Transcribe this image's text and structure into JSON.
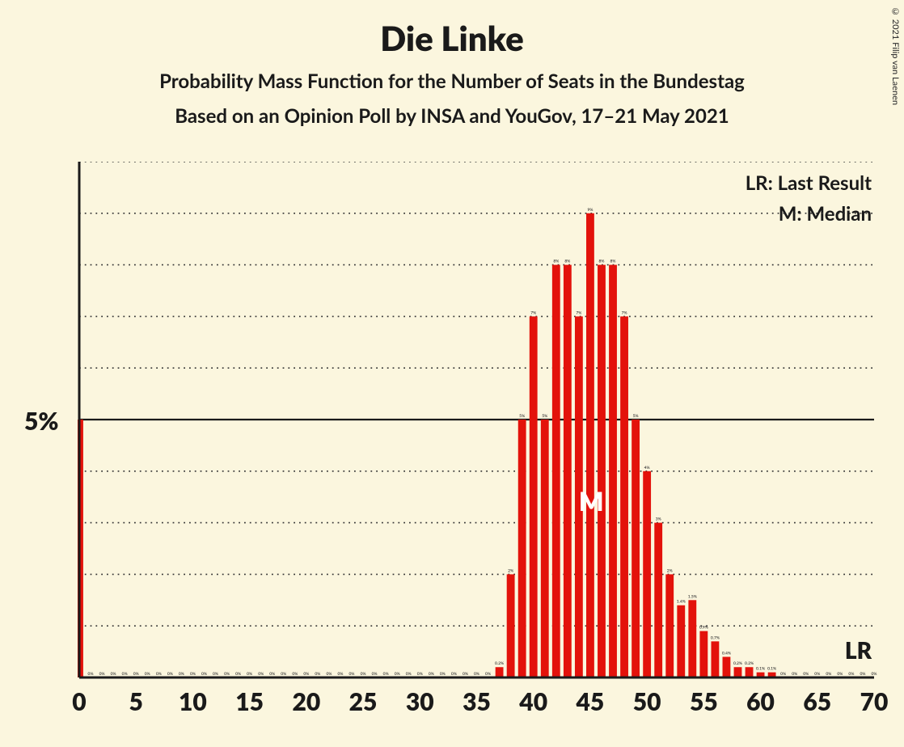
{
  "copyright": "© 2021 Filip van Laenen",
  "header": {
    "title": "Die Linke",
    "subtitle1": "Probability Mass Function for the Number of Seats in the Bundestag",
    "subtitle2": "Based on an Opinion Poll by INSA and YouGov, 17–21 May 2021"
  },
  "legend": {
    "lr": "LR: Last Result",
    "m": "M: Median"
  },
  "chart": {
    "type": "bar",
    "background_color": "#fbf6de",
    "bar_color": "#e3120b",
    "axis_color": "#1a1a1a",
    "grid_color": "#333333",
    "text_color": "#1a1a1a",
    "ylabel_5": "5%",
    "ylim": [
      0,
      10
    ],
    "ytick_major": 5,
    "ytick_minor": 1,
    "xlim": [
      0,
      70
    ],
    "xtick_step": 5,
    "xticks": [
      0,
      5,
      10,
      15,
      20,
      25,
      30,
      35,
      40,
      45,
      50,
      55,
      60,
      65,
      70
    ],
    "bar_width_ratio": 0.7,
    "median_x": 45,
    "median_label": "M",
    "lr_label": "LR",
    "lr_x": 69,
    "bar_label_fontsize": 5,
    "data": [
      {
        "x": 0,
        "pct": 5.0,
        "label": ""
      },
      {
        "x": 1,
        "pct": 0,
        "label": "0%"
      },
      {
        "x": 2,
        "pct": 0,
        "label": "0%"
      },
      {
        "x": 3,
        "pct": 0,
        "label": "0%"
      },
      {
        "x": 4,
        "pct": 0,
        "label": "0%"
      },
      {
        "x": 5,
        "pct": 0,
        "label": "0%"
      },
      {
        "x": 6,
        "pct": 0,
        "label": "0%"
      },
      {
        "x": 7,
        "pct": 0,
        "label": "0%"
      },
      {
        "x": 8,
        "pct": 0,
        "label": "0%"
      },
      {
        "x": 9,
        "pct": 0,
        "label": "0%"
      },
      {
        "x": 10,
        "pct": 0,
        "label": "0%"
      },
      {
        "x": 11,
        "pct": 0,
        "label": "0%"
      },
      {
        "x": 12,
        "pct": 0,
        "label": "0%"
      },
      {
        "x": 13,
        "pct": 0,
        "label": "0%"
      },
      {
        "x": 14,
        "pct": 0,
        "label": "0%"
      },
      {
        "x": 15,
        "pct": 0,
        "label": "0%"
      },
      {
        "x": 16,
        "pct": 0,
        "label": "0%"
      },
      {
        "x": 17,
        "pct": 0,
        "label": "0%"
      },
      {
        "x": 18,
        "pct": 0,
        "label": "0%"
      },
      {
        "x": 19,
        "pct": 0,
        "label": "0%"
      },
      {
        "x": 20,
        "pct": 0,
        "label": "0%"
      },
      {
        "x": 21,
        "pct": 0,
        "label": "0%"
      },
      {
        "x": 22,
        "pct": 0,
        "label": "0%"
      },
      {
        "x": 23,
        "pct": 0,
        "label": "0%"
      },
      {
        "x": 24,
        "pct": 0,
        "label": "0%"
      },
      {
        "x": 25,
        "pct": 0,
        "label": "0%"
      },
      {
        "x": 26,
        "pct": 0,
        "label": "0%"
      },
      {
        "x": 27,
        "pct": 0,
        "label": "0%"
      },
      {
        "x": 28,
        "pct": 0,
        "label": "0%"
      },
      {
        "x": 29,
        "pct": 0,
        "label": "0%"
      },
      {
        "x": 30,
        "pct": 0,
        "label": "0%"
      },
      {
        "x": 31,
        "pct": 0,
        "label": "0%"
      },
      {
        "x": 32,
        "pct": 0,
        "label": "0%"
      },
      {
        "x": 33,
        "pct": 0,
        "label": "0%"
      },
      {
        "x": 34,
        "pct": 0,
        "label": "0%"
      },
      {
        "x": 35,
        "pct": 0,
        "label": "0%"
      },
      {
        "x": 36,
        "pct": 0,
        "label": "0%"
      },
      {
        "x": 37,
        "pct": 0.2,
        "label": "0.2%"
      },
      {
        "x": 38,
        "pct": 2,
        "label": "2%"
      },
      {
        "x": 39,
        "pct": 5,
        "label": "5%"
      },
      {
        "x": 40,
        "pct": 7,
        "label": "7%"
      },
      {
        "x": 41,
        "pct": 5,
        "label": "5%"
      },
      {
        "x": 42,
        "pct": 8,
        "label": "8%"
      },
      {
        "x": 43,
        "pct": 8,
        "label": "8%"
      },
      {
        "x": 44,
        "pct": 7,
        "label": "7%"
      },
      {
        "x": 45,
        "pct": 9,
        "label": "9%"
      },
      {
        "x": 46,
        "pct": 8,
        "label": "8%"
      },
      {
        "x": 47,
        "pct": 8,
        "label": "8%"
      },
      {
        "x": 48,
        "pct": 7,
        "label": "7%"
      },
      {
        "x": 49,
        "pct": 5,
        "label": "5%"
      },
      {
        "x": 50,
        "pct": 4,
        "label": "4%"
      },
      {
        "x": 51,
        "pct": 3,
        "label": "3%"
      },
      {
        "x": 52,
        "pct": 2,
        "label": "2%"
      },
      {
        "x": 53,
        "pct": 1.4,
        "label": "1.4%"
      },
      {
        "x": 54,
        "pct": 1.5,
        "label": "1.5%"
      },
      {
        "x": 55,
        "pct": 0.9,
        "label": "0.9%"
      },
      {
        "x": 56,
        "pct": 0.7,
        "label": "0.7%"
      },
      {
        "x": 57,
        "pct": 0.4,
        "label": "0.4%"
      },
      {
        "x": 58,
        "pct": 0.2,
        "label": "0.2%"
      },
      {
        "x": 59,
        "pct": 0.2,
        "label": "0.2%"
      },
      {
        "x": 60,
        "pct": 0.1,
        "label": "0.1%"
      },
      {
        "x": 61,
        "pct": 0.1,
        "label": "0.1%"
      },
      {
        "x": 62,
        "pct": 0,
        "label": "0%"
      },
      {
        "x": 63,
        "pct": 0,
        "label": "0%"
      },
      {
        "x": 64,
        "pct": 0,
        "label": "0%"
      },
      {
        "x": 65,
        "pct": 0,
        "label": "0%"
      },
      {
        "x": 66,
        "pct": 0,
        "label": "0%"
      },
      {
        "x": 67,
        "pct": 0,
        "label": "0%"
      },
      {
        "x": 68,
        "pct": 0,
        "label": "0%"
      },
      {
        "x": 69,
        "pct": 0,
        "label": "0%"
      },
      {
        "x": 70,
        "pct": 0,
        "label": "0%"
      }
    ]
  }
}
